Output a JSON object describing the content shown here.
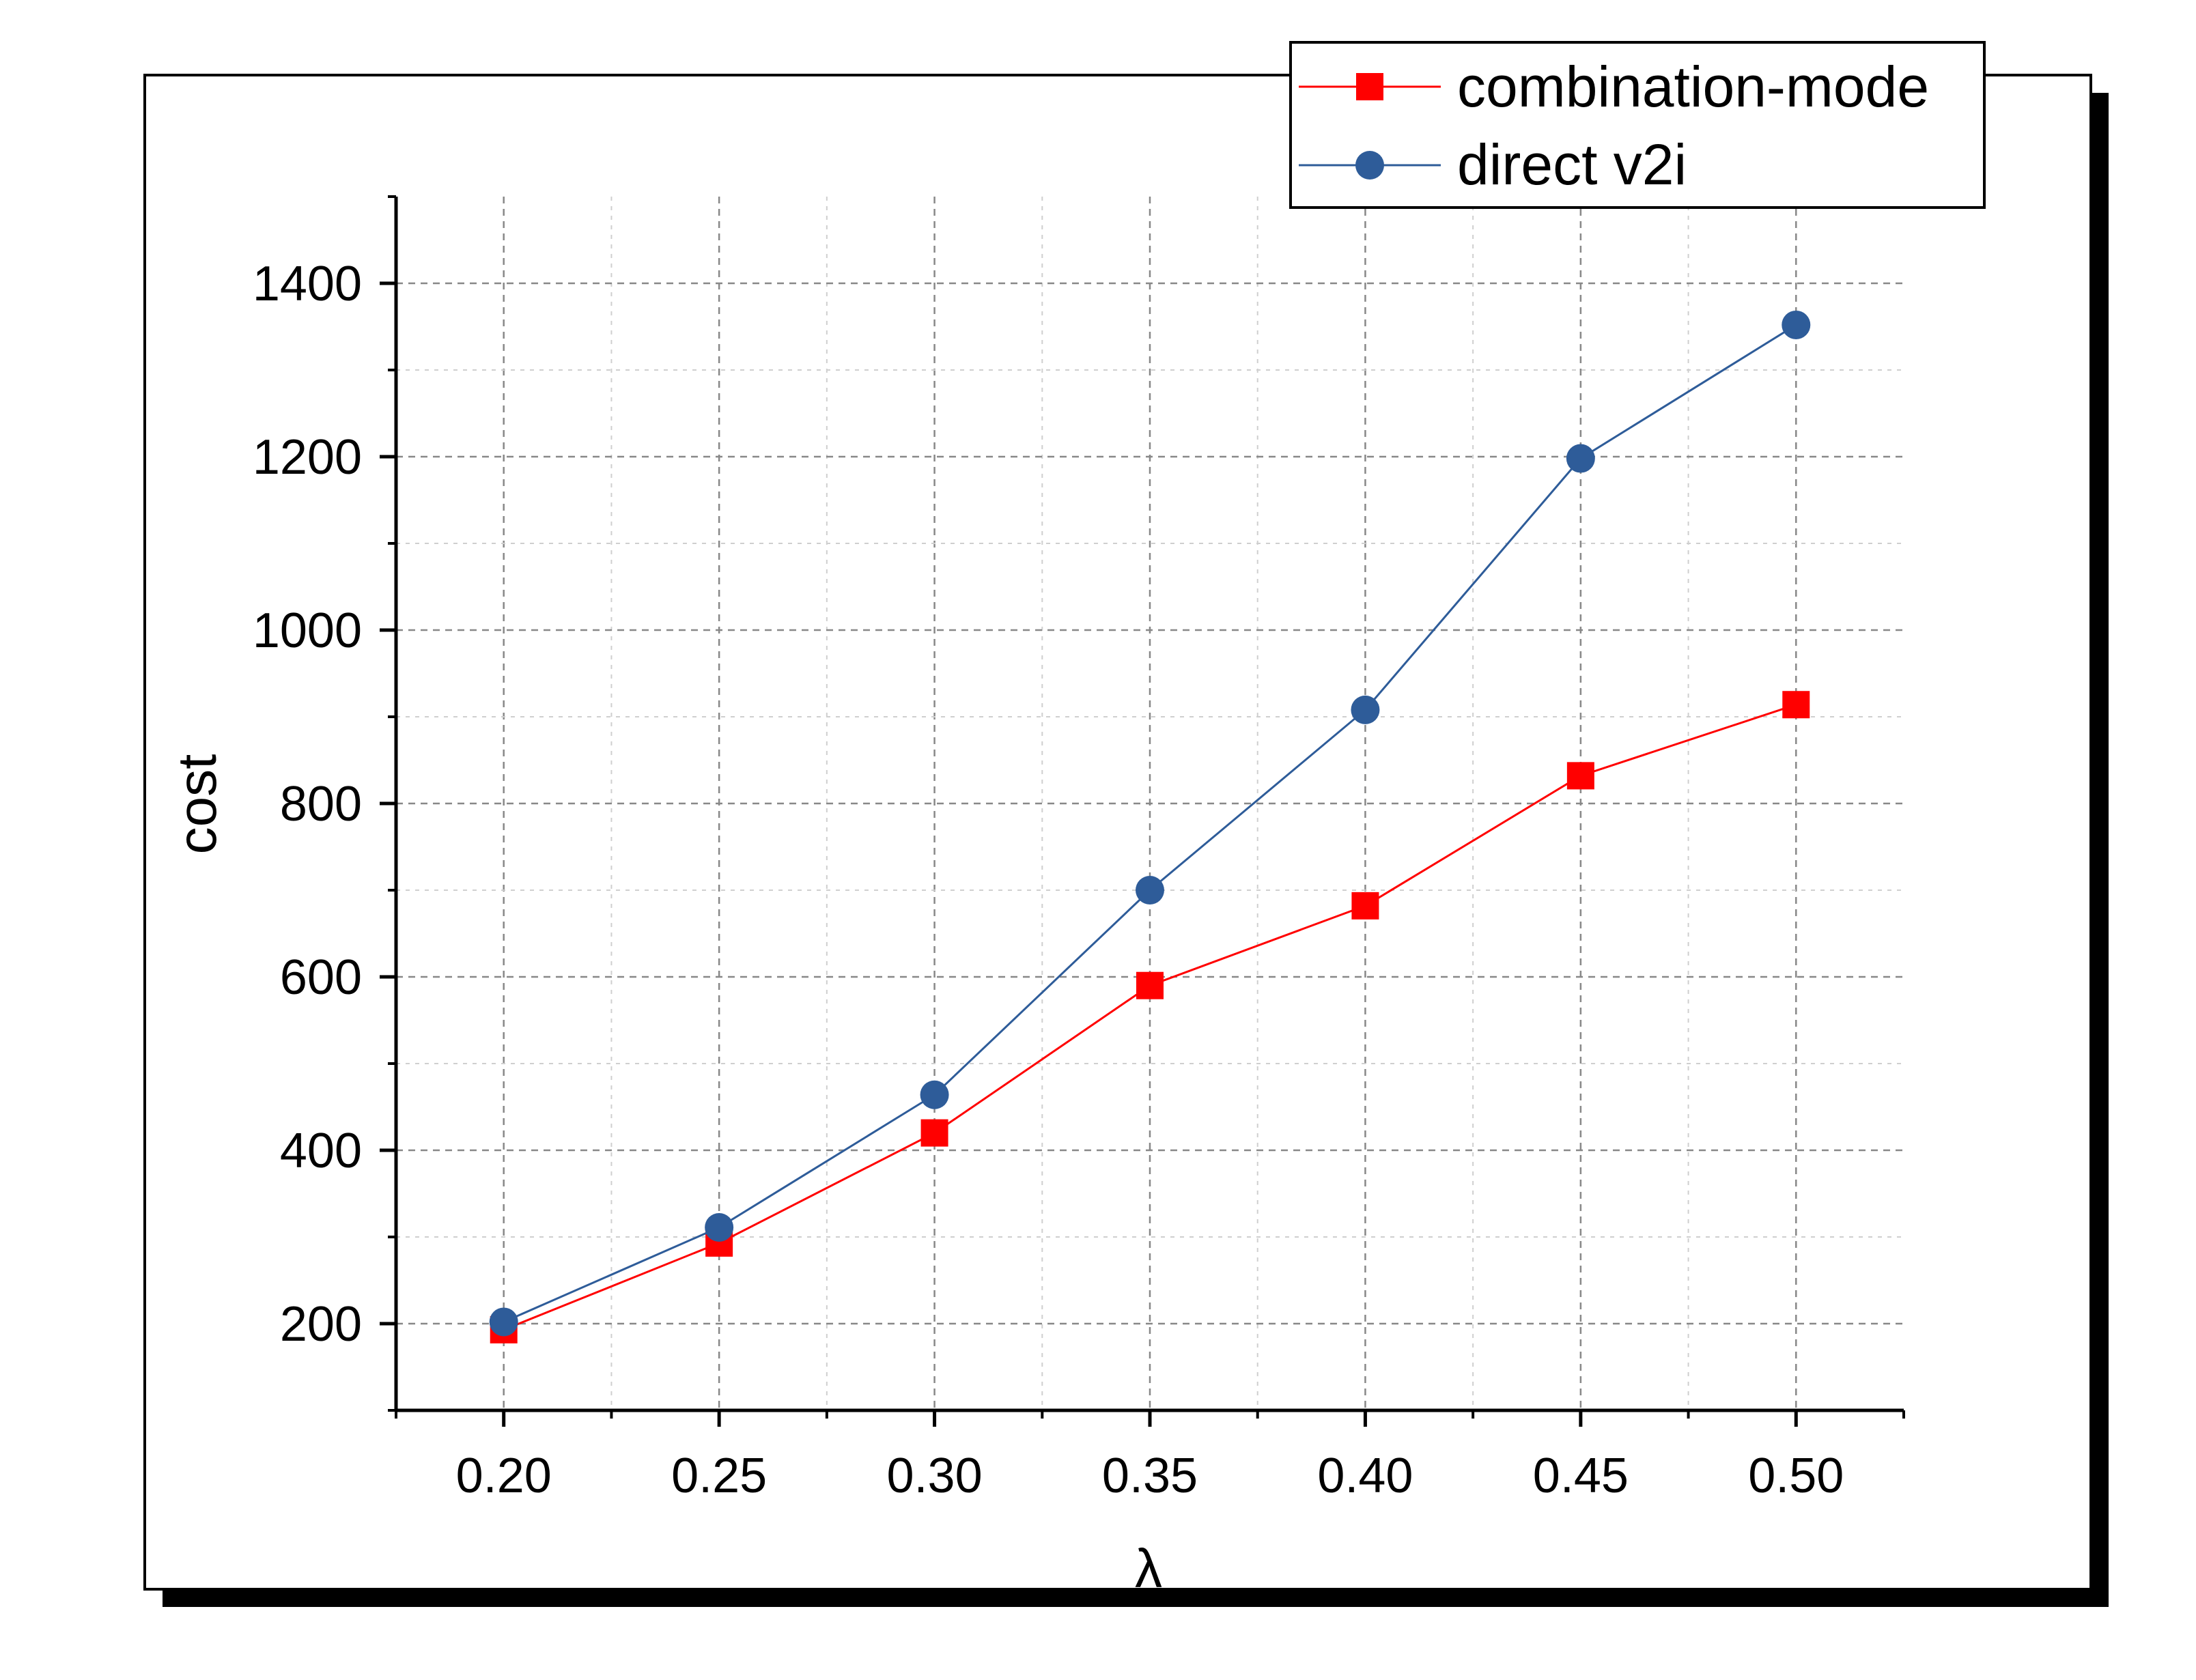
{
  "chart_data": {
    "type": "line",
    "xlabel": "λ",
    "ylabel": "cost",
    "x": [
      0.2,
      0.25,
      0.3,
      0.35,
      0.4,
      0.45,
      0.5
    ],
    "x_tick_labels": [
      "0.20",
      "0.25",
      "0.30",
      "0.35",
      "0.40",
      "0.45",
      "0.50"
    ],
    "xlim": [
      0.175,
      0.525
    ],
    "ylim": [
      100,
      1500
    ],
    "y_ticks": [
      200,
      400,
      600,
      800,
      1000,
      1200,
      1400
    ],
    "y_tick_labels": [
      "200",
      "400",
      "600",
      "800",
      "1000",
      "1200",
      "1400"
    ],
    "grid": true,
    "legend_position": "top-right",
    "series": [
      {
        "name": "combination-mode",
        "color": "#ff0000",
        "marker": "square",
        "values": [
          193,
          293,
          420,
          590,
          682,
          832,
          914
        ]
      },
      {
        "name": "direct v2i",
        "color": "#2e5c99",
        "marker": "circle",
        "values": [
          202,
          311,
          464,
          700,
          908,
          1198,
          1352
        ]
      }
    ]
  }
}
